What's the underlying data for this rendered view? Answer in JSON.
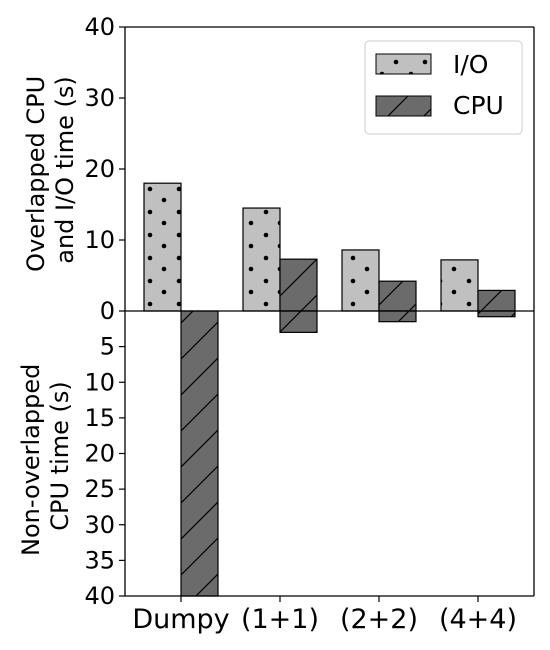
{
  "chart_data": {
    "type": "bar",
    "categories": [
      "Dumpy",
      "(1+1)",
      "(2+2)",
      "(4+4)"
    ],
    "upper_panel": {
      "ylabel_lines": [
        "Overlapped CPU",
        "and I/O time (s)"
      ],
      "ylim": [
        0,
        40
      ],
      "yticks": [
        "0",
        "10",
        "20",
        "30",
        "40"
      ],
      "series": [
        {
          "name": "I/O",
          "values": [
            18.0,
            14.5,
            8.6,
            7.2
          ]
        },
        {
          "name": "CPU",
          "values": [
            0,
            7.3,
            4.2,
            2.9
          ]
        }
      ]
    },
    "lower_panel": {
      "ylabel_lines": [
        "Non-overlapped",
        "CPU time (s)"
      ],
      "ylim": [
        0,
        40
      ],
      "yticks": [
        "5",
        "10",
        "15",
        "20",
        "25",
        "30",
        "35",
        "40"
      ],
      "series": [
        {
          "name": "CPU",
          "values": [
            40,
            3.0,
            1.5,
            0.8
          ]
        }
      ]
    },
    "legend": {
      "placement": "top-right",
      "entries": [
        {
          "name": "I/O",
          "pattern": "dots",
          "color": "#c0c0c0"
        },
        {
          "name": "CPU",
          "pattern": "diagonal-hatch",
          "color": "#6b6b6b"
        }
      ]
    },
    "colors": {
      "io": "#c0c0c0",
      "cpu": "#6b6b6b"
    },
    "grid": false
  }
}
